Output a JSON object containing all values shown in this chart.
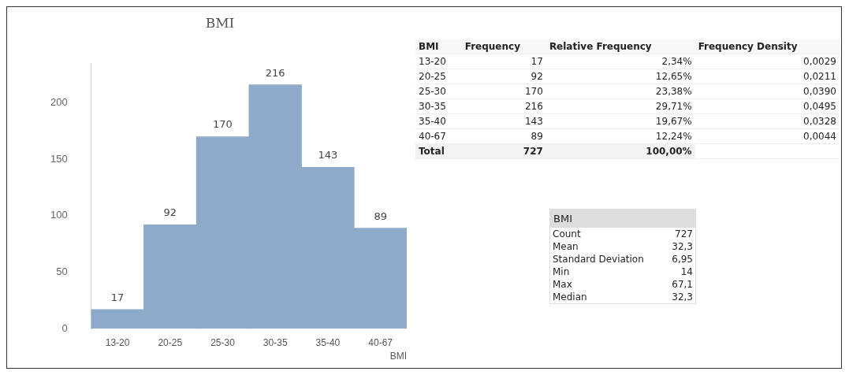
{
  "chart_data": [
    {
      "type": "bar",
      "title": "BMI",
      "xlabel": "BMI",
      "categories": [
        "13-20",
        "20-25",
        "25-30",
        "30-35",
        "35-40",
        "40-67"
      ],
      "values": [
        17,
        92,
        170,
        216,
        143,
        89
      ],
      "color": "#8eaacb",
      "ylim": [
        0,
        235
      ],
      "yticks": [
        0,
        50,
        100,
        150,
        200
      ],
      "grid": false,
      "legend": false,
      "data_labels": true
    },
    {
      "type": "other",
      "title": "BMI",
      "categories": [
        "13-20",
        "20-25",
        "25-30",
        "30-35",
        "35-40",
        "40-67",
        "Total"
      ],
      "series": [
        {
          "name": "Frequency",
          "values": [
            17,
            92,
            170,
            216,
            143,
            89,
            727
          ],
          "value_labels": [
            "17",
            "92",
            "170",
            "216",
            "143",
            "89",
            "727"
          ]
        },
        {
          "name": "Relative Frequency",
          "values": [
            2.34,
            12.65,
            23.38,
            29.71,
            19.67,
            12.24,
            100
          ],
          "value_labels": [
            "2,34%",
            "12,65%",
            "23,38%",
            "29,71%",
            "19,67%",
            "12,24%",
            "100,00%"
          ]
        },
        {
          "name": "Frequency Density",
          "values": [
            0.0029,
            0.0211,
            0.039,
            0.0495,
            0.0328,
            0.0044,
            null
          ],
          "value_labels": [
            "0,0029",
            "0,0211",
            "0,0390",
            "0,0495",
            "0,0328",
            "0,0044",
            null
          ]
        }
      ]
    },
    {
      "type": "other",
      "title": "BMI",
      "categories": [
        "Count",
        "Mean",
        "Standard Deviation",
        "Min",
        "Max",
        "Median"
      ],
      "values": [
        727,
        32.3,
        6.95,
        14,
        67.1,
        32.3
      ],
      "value_labels": [
        "727",
        "32,3",
        "6,95",
        "14",
        "67,1",
        "32,3"
      ]
    }
  ]
}
